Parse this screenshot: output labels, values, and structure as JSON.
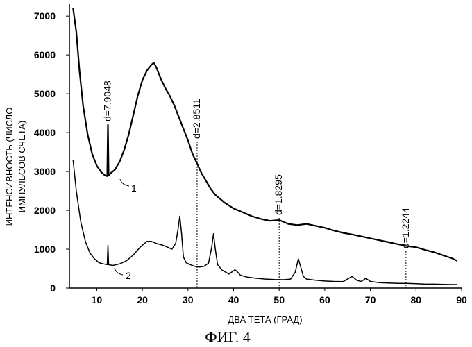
{
  "chart_data": {
    "type": "line",
    "title": "",
    "xlabel": "ДВА ТЕТА (ГРАД)",
    "ylabel_lines": [
      "ИНТЕНСИВНОСТЬ (ЧИСЛО",
      "ИМПУЛЬСОВ СЧЕТА)"
    ],
    "xlim": [
      4,
      90
    ],
    "ylim": [
      0,
      7200
    ],
    "x_ticks": [
      10,
      20,
      30,
      40,
      50,
      60,
      70,
      80,
      90
    ],
    "y_ticks": [
      0,
      1000,
      2000,
      3000,
      4000,
      5000,
      6000,
      7000
    ],
    "grid": false,
    "series": [
      {
        "name": "1",
        "x": [
          4.8,
          5.5,
          6.2,
          7.0,
          8.0,
          9.0,
          10.0,
          11.0,
          11.8,
          12.3,
          12.45,
          12.6,
          13.0,
          14.0,
          15.0,
          16.0,
          17.0,
          18.0,
          19.0,
          20.0,
          21.0,
          22.0,
          22.5,
          23.0,
          24.0,
          25.0,
          26.0,
          27.0,
          28.0,
          29.0,
          30.0,
          31.0,
          32.0,
          33.0,
          34.0,
          35.0,
          36.0,
          38.0,
          40.0,
          42.0,
          44.0,
          46.0,
          48.0,
          50.0,
          52.0,
          54.0,
          56.0,
          58.0,
          60.0,
          62.0,
          64.0,
          66.0,
          68.0,
          70.0,
          72.0,
          74.0,
          76.0,
          78.0,
          80.0,
          82.0,
          84.0,
          86.0,
          88.0,
          89.0
        ],
        "y": [
          7200,
          6600,
          5600,
          4700,
          3950,
          3450,
          3150,
          2980,
          2900,
          2880,
          4200,
          2900,
          2950,
          3050,
          3250,
          3550,
          3950,
          4450,
          4950,
          5350,
          5600,
          5750,
          5800,
          5700,
          5400,
          5150,
          4950,
          4700,
          4400,
          4100,
          3800,
          3450,
          3200,
          2950,
          2750,
          2550,
          2400,
          2200,
          2050,
          1950,
          1850,
          1780,
          1730,
          1750,
          1650,
          1620,
          1650,
          1600,
          1550,
          1480,
          1420,
          1380,
          1330,
          1280,
          1230,
          1180,
          1130,
          1080,
          1050,
          980,
          920,
          840,
          760,
          700
        ]
      },
      {
        "name": "2",
        "x": [
          4.8,
          5.5,
          6.5,
          7.5,
          8.5,
          9.5,
          10.5,
          11.5,
          12.3,
          12.45,
          12.6,
          13.5,
          15.0,
          16.5,
          18.0,
          19.5,
          21.0,
          22.0,
          23.0,
          24.5,
          25.5,
          26.5,
          27.3,
          27.8,
          28.2,
          28.6,
          29.0,
          29.6,
          30.5,
          31.5,
          32.5,
          33.5,
          34.5,
          35.2,
          35.6,
          36.0,
          36.5,
          37.5,
          39.0,
          40.3,
          40.8,
          41.5,
          43.0,
          45.0,
          47.0,
          49.0,
          51.0,
          52.5,
          53.5,
          54.2,
          54.7,
          55.3,
          56.0,
          58.0,
          60.0,
          62.0,
          64.0,
          66.0,
          67.0,
          68.0,
          69.0,
          70.0,
          72.0,
          74.0,
          76.0,
          78.0,
          80.0,
          82.0,
          84.0,
          86.0,
          88.0,
          89.0
        ],
        "y": [
          3300,
          2500,
          1700,
          1200,
          900,
          750,
          650,
          620,
          600,
          1100,
          600,
          580,
          620,
          700,
          850,
          1050,
          1200,
          1200,
          1150,
          1100,
          1050,
          1000,
          1150,
          1500,
          1850,
          1400,
          800,
          650,
          600,
          560,
          540,
          560,
          640,
          1050,
          1400,
          1000,
          600,
          460,
          360,
          470,
          420,
          330,
          280,
          250,
          230,
          220,
          215,
          230,
          400,
          750,
          550,
          300,
          230,
          200,
          180,
          170,
          165,
          300,
          200,
          170,
          250,
          170,
          140,
          130,
          120,
          120,
          110,
          100,
          100,
          95,
          90,
          90
        ]
      }
    ],
    "annotations": [
      {
        "text": "d=7.9048",
        "x": 12.45
      },
      {
        "text": "d=2.8511",
        "x": 32.0
      },
      {
        "text": "d=1.8295",
        "x": 50.0
      },
      {
        "text": "d=1.2244",
        "x": 77.8
      }
    ],
    "curve_labels": [
      "1",
      "2"
    ],
    "caption": "ФИГ. 4"
  }
}
